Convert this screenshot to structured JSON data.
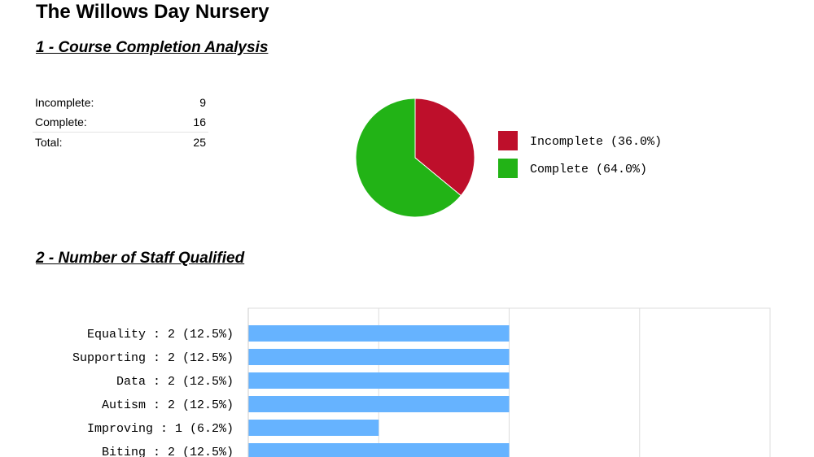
{
  "page": {
    "title": "The Willows Day Nursery"
  },
  "section1": {
    "heading": "1 - Course Completion Analysis",
    "stats": [
      {
        "label": "Incomplete:",
        "value": "9"
      },
      {
        "label": "Complete:",
        "value": "16"
      },
      {
        "label": "Total:",
        "value": "25"
      }
    ]
  },
  "section2": {
    "heading": "2 - Number of Staff Qualified"
  },
  "chart_data": [
    {
      "type": "pie",
      "slices": [
        {
          "label": "Incomplete (36.0%)",
          "value": 9,
          "percent": 36.0,
          "color": "#be0f2b"
        },
        {
          "label": "Complete (64.0%)",
          "value": 16,
          "percent": 64.0,
          "color": "#22b316"
        }
      ],
      "legend": "right"
    },
    {
      "type": "bar",
      "orientation": "horizontal",
      "categories": [
        "Equality : 2 (12.5%)",
        "Supporting : 2 (12.5%)",
        "Data : 2 (12.5%)",
        "Autism : 2 (12.5%)",
        "Improving : 1 (6.2%)",
        "Biting : 2 (12.5%)"
      ],
      "values": [
        2,
        2,
        2,
        2,
        1,
        2
      ],
      "xlim": [
        0,
        4
      ],
      "grid": true,
      "color": "#66b3ff"
    }
  ]
}
